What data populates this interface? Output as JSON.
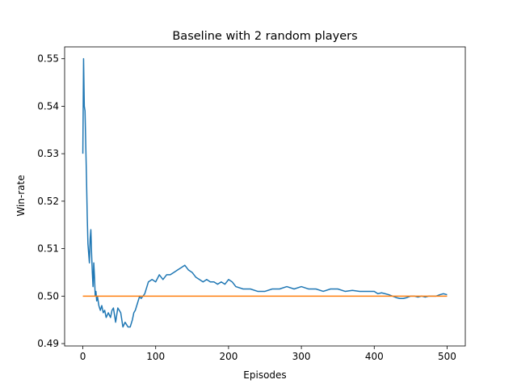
{
  "chart_data": {
    "type": "line",
    "title": "Baseline with 2 random players",
    "xlabel": "Episodes",
    "ylabel": "Win-rate",
    "xlim": [
      -25,
      525
    ],
    "ylim": [
      0.4895,
      0.5525
    ],
    "xticks": [
      0,
      100,
      200,
      300,
      400,
      500
    ],
    "yticks": [
      0.49,
      0.5,
      0.51,
      0.52,
      0.53,
      0.54,
      0.55
    ],
    "ytick_labels": [
      "0.49",
      "0.50",
      "0.51",
      "0.52",
      "0.53",
      "0.54",
      "0.55"
    ],
    "grid": false,
    "legend": "none",
    "series": [
      {
        "color": "#1f77b4",
        "x": [
          0,
          1,
          2,
          3,
          4,
          5,
          6,
          7,
          8,
          9,
          10,
          11,
          12,
          13,
          14,
          15,
          16,
          17,
          18,
          19,
          20,
          22,
          24,
          26,
          28,
          30,
          32,
          35,
          38,
          40,
          42,
          45,
          48,
          50,
          52,
          55,
          58,
          60,
          62,
          65,
          68,
          70,
          72,
          75,
          78,
          80,
          85,
          88,
          90,
          95,
          100,
          105,
          110,
          115,
          120,
          125,
          130,
          135,
          140,
          145,
          150,
          155,
          160,
          165,
          170,
          175,
          180,
          185,
          190,
          195,
          200,
          205,
          210,
          220,
          230,
          240,
          250,
          260,
          270,
          280,
          290,
          300,
          310,
          320,
          330,
          340,
          350,
          360,
          370,
          380,
          390,
          400,
          405,
          410,
          415,
          420,
          425,
          430,
          435,
          440,
          445,
          450,
          455,
          460,
          465,
          470,
          475,
          480,
          485,
          490,
          495,
          500
        ],
        "y": [
          0.53,
          0.55,
          0.54,
          0.539,
          0.532,
          0.525,
          0.517,
          0.511,
          0.509,
          0.507,
          0.512,
          0.514,
          0.509,
          0.505,
          0.502,
          0.507,
          0.504,
          0.5,
          0.501,
          0.499,
          0.5,
          0.498,
          0.497,
          0.498,
          0.4965,
          0.497,
          0.4955,
          0.4965,
          0.4955,
          0.497,
          0.4975,
          0.4945,
          0.4975,
          0.497,
          0.4965,
          0.4935,
          0.4945,
          0.494,
          0.4935,
          0.4935,
          0.495,
          0.4965,
          0.497,
          0.4985,
          0.5,
          0.4995,
          0.5005,
          0.502,
          0.503,
          0.5035,
          0.503,
          0.5045,
          0.5035,
          0.5045,
          0.5045,
          0.505,
          0.5055,
          0.506,
          0.5065,
          0.5055,
          0.505,
          0.504,
          0.5035,
          0.503,
          0.5035,
          0.503,
          0.503,
          0.5025,
          0.503,
          0.5025,
          0.5035,
          0.503,
          0.502,
          0.5015,
          0.5015,
          0.501,
          0.501,
          0.5015,
          0.5015,
          0.502,
          0.5015,
          0.502,
          0.5015,
          0.5015,
          0.501,
          0.5015,
          0.5015,
          0.501,
          0.5012,
          0.501,
          0.501,
          0.501,
          0.5005,
          0.5007,
          0.5005,
          0.5003,
          0.5,
          0.4997,
          0.4995,
          0.4995,
          0.4997,
          0.5,
          0.5,
          0.4998,
          0.5,
          0.4998,
          0.5,
          0.5,
          0.5,
          0.5003,
          0.5005,
          0.5003
        ]
      },
      {
        "color": "#ff7f0e",
        "x": [
          0,
          500
        ],
        "y": [
          0.5,
          0.5
        ]
      }
    ]
  }
}
